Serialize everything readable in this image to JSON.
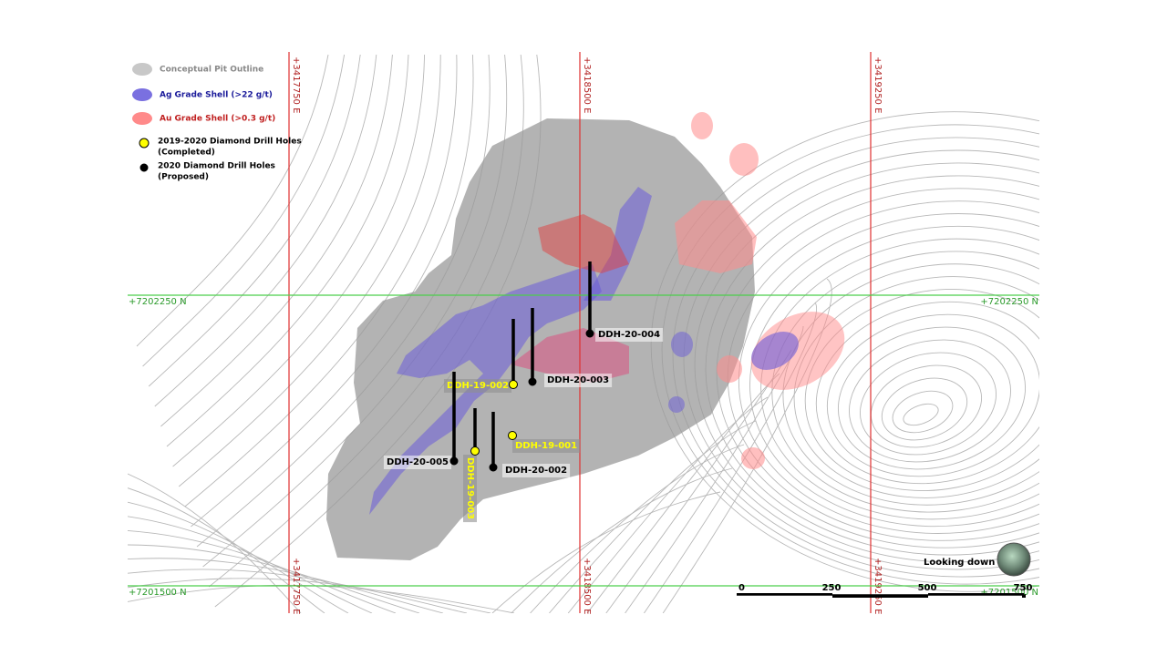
{
  "legend": [
    {
      "label": "Conceptual Pit Outline"
    },
    {
      "label": "Ag Grade Shell (>22 g/t)"
    },
    {
      "label": "Au Grade Shell (>0.3 g/t)"
    },
    {
      "label": [
        "2019-2020 Diamond Drill Holes",
        "(Completed)"
      ]
    },
    {
      "label": [
        "2020 Diamond Drill Holes",
        "(Proposed)"
      ]
    }
  ],
  "grid": {
    "eastings": [
      "+3417750 E",
      "+3418500 E",
      "+3419250 E"
    ],
    "northings": [
      "+7202250 N",
      "+7201500 N"
    ]
  },
  "drill_holes": [
    {
      "label": "DDH-20-004",
      "status": "Proposed"
    },
    {
      "label": "DDH-20-003",
      "status": "Proposed"
    },
    {
      "label": "DDH-19-002",
      "status": "Completed"
    },
    {
      "label": "DDH-19-001",
      "status": "Completed"
    },
    {
      "label": "DDH-20-005",
      "status": "Proposed"
    },
    {
      "label": "DDH-20-002",
      "status": "Proposed"
    },
    {
      "label": "DDH-19-003",
      "status": "Completed"
    }
  ],
  "view": "Looking down",
  "scale": [
    0,
    250,
    500,
    750
  ]
}
